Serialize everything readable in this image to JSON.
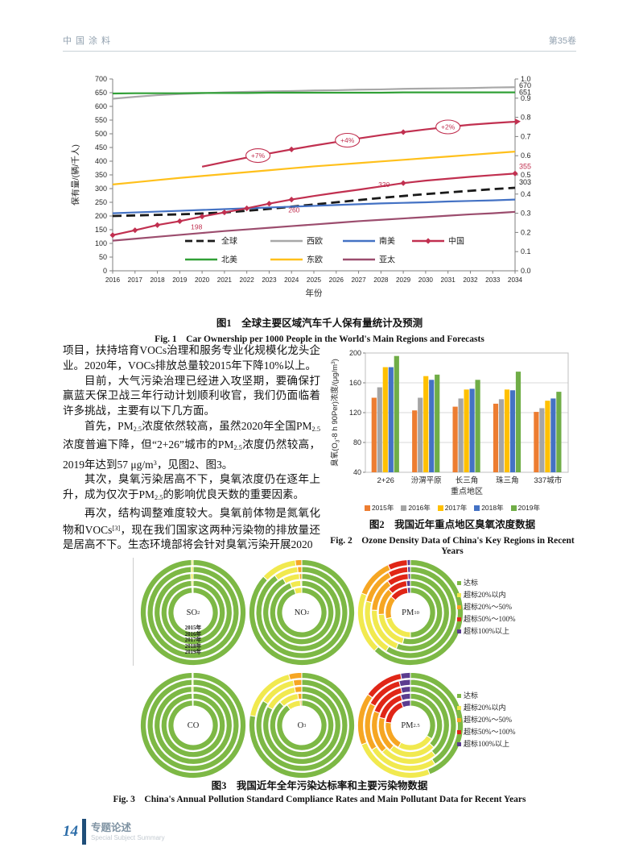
{
  "header": {
    "journal": "中国涂料",
    "volume": "第35卷"
  },
  "figure1": {
    "caption_cn": "图1　全球主要区域汽车千人保有量统计及预测",
    "caption_en": "Fig. 1　Car Ownership per 1000 People in the World's Main Regions and Forecasts"
  },
  "body_text": {
    "paragraphs": [
      "项目，扶持培育VOCs治理和服务专业化规模化龙头企业。2020年，VOCs排放总量较2015年下降10%以上。",
      "目前，大气污染治理已经进入攻坚期，要确保打赢蓝天保卫战三年行动计划顺利收官，我们仍面临着许多挑战，主要有以下几方面。",
      "首先，PM<sub>2.5</sub>浓度依然较高，虽然2020年全国PM<sub>2.5</sub>浓度普遍下降，但“2+26”城市的PM<sub>2.5</sub>浓度仍然较高，2019年达到57 μg/m<sup>3</sup>，见图2、图3。",
      "其次，臭氧污染居高不下，臭氧浓度仍在逐年上升，成为仅次于PM<sub>2.5</sub>的影响优良天数的重要因素。",
      "再次，结构调整难度较大。臭氧前体物是氮氧化物和VOCs<sup>[3]</sup>，现在我们国家这两种污染物的排放量还是居高不下。生态环境部将会针对臭氧污染开展2020"
    ]
  },
  "figure2": {
    "caption_cn": "图2　我国近年重点地区臭氧浓度数据",
    "caption_en": "Fig. 2　Ozone Density Data of China's Key Regions in Recent Years"
  },
  "figure3": {
    "caption_cn": "图3　我国近年全年污染达标率和主要污染物数据",
    "caption_en": "Fig. 3　China's Annual Pollution Standard Compliance Rates and Main Pollutant Data for Recent Years"
  },
  "footer": {
    "page_number": "14",
    "section_cn": "专题论述",
    "section_en": "Special Subject Summary"
  },
  "chart_data": [
    {
      "id": "fig1",
      "type": "line",
      "x": [
        2016,
        2017,
        2018,
        2019,
        2020,
        2021,
        2022,
        2023,
        2024,
        2025,
        2026,
        2027,
        2028,
        2029,
        2030,
        2031,
        2032,
        2033,
        2034
      ],
      "xlabel": "年份",
      "ylabel_left": "保有量/(辆/千人)",
      "ylim_left": [
        0,
        700
      ],
      "ytick_step_left": 50,
      "ylim_right": [
        0.0,
        1.0
      ],
      "ytick_step_right": 0.1,
      "series": [
        {
          "name": "全球",
          "key": "global",
          "color": "#1a1a1a",
          "style": "dashed",
          "values": [
            200,
            202,
            204,
            206,
            209,
            213,
            219,
            226,
            234,
            242,
            250,
            258,
            266,
            273,
            280,
            286,
            292,
            298,
            303
          ],
          "end_label": "303",
          "end_label_color": "#1a1a1a",
          "end_label_dy": -4
        },
        {
          "name": "西欧",
          "key": "west-europe",
          "color": "#a8a8a8",
          "values": [
            628,
            635,
            641,
            645,
            648,
            651,
            653,
            655,
            656,
            658,
            659,
            661,
            662,
            664,
            665,
            666,
            667,
            669,
            670
          ],
          "end_label": "670",
          "end_label_color": "#262626",
          "end_label_dy": 1
        },
        {
          "name": "南美",
          "key": "south-america",
          "color": "#4472c4",
          "values": [
            210,
            213,
            216,
            219,
            222,
            225,
            228,
            231,
            234,
            237,
            240,
            243,
            246,
            248,
            250,
            253,
            255,
            257,
            260
          ]
        },
        {
          "name": "中国",
          "key": "china",
          "color": "#c13050",
          "marker": "diamond",
          "marker_years": [
            2016,
            2017,
            2018,
            2019,
            2020,
            2021,
            2022,
            2023,
            2024,
            2029,
            2034
          ],
          "values": [
            130,
            148,
            167,
            181,
            198,
            213,
            228,
            245,
            260,
            273,
            285,
            296,
            308,
            320,
            329,
            336,
            343,
            349,
            355
          ],
          "end_label": "355",
          "end_label_color": "#c13050",
          "end_label_dy": -6,
          "point_labels": [
            {
              "x": 2020,
              "text": "198",
              "dx": -14,
              "dy": 16
            },
            {
              "x": 2024,
              "text": "260",
              "dx": -4,
              "dy": 16
            },
            {
              "x": 2029,
              "text": "320",
              "dx": -31,
              "dy": 5
            }
          ]
        },
        {
          "name": "北美",
          "key": "north-america",
          "color": "#31a037",
          "values": [
            647,
            648,
            648,
            648,
            649,
            649,
            649,
            650,
            650,
            650,
            650,
            650,
            650,
            651,
            651,
            651,
            651,
            651,
            651
          ],
          "end_label": "651",
          "end_label_color": "#262626",
          "end_label_dy": 3
        },
        {
          "name": "东欧",
          "key": "east-europe",
          "color": "#ffc01b",
          "values": [
            315,
            323,
            331,
            339,
            346,
            353,
            360,
            367,
            374,
            381,
            387,
            393,
            399,
            405,
            411,
            417,
            423,
            429,
            435
          ]
        },
        {
          "name": "亚太",
          "key": "asia-pacific",
          "color": "#9c4d6e",
          "values": [
            110,
            117,
            124,
            131,
            138,
            145,
            151,
            157,
            163,
            169,
            175,
            181,
            186,
            191,
            196,
            201,
            206,
            210,
            215
          ]
        },
        {
          "name": "中国增速",
          "key": "china-growth",
          "color": "#c13050",
          "marker": "diamond",
          "marker_years": [
            2024,
            2029
          ],
          "x_start": 2020,
          "arrow_end": true,
          "values_partial": [
            380,
            397,
            413,
            428,
            443,
            457,
            470,
            483,
            495,
            506,
            516,
            525,
            533,
            539,
            544
          ],
          "bubbles": [
            {
              "x": 2022.5,
              "text": "+7%"
            },
            {
              "x": 2026.5,
              "text": "+4%"
            },
            {
              "x": 2031,
              "text": "+2%"
            }
          ]
        }
      ],
      "legend_rows": [
        [
          "全球",
          "西欧",
          "南美",
          "中国"
        ],
        [
          "北美",
          "东欧",
          "亚太"
        ]
      ]
    },
    {
      "id": "fig2",
      "type": "bar",
      "categories": [
        "2+26",
        "汾渭平原",
        "长三角",
        "珠三角",
        "337城市"
      ],
      "xlabel": "重点地区",
      "ylabel_parts": [
        {
          "t": "臭氧(O"
        },
        {
          "t": "3",
          "shift": "sub"
        },
        {
          "t": "-8 h 90Per)浓度/(μg/m"
        },
        {
          "t": "3",
          "shift": "sup"
        },
        {
          "t": ")"
        }
      ],
      "ylim": [
        40,
        200
      ],
      "yticks": [
        40,
        80,
        120,
        160,
        200
      ],
      "series": [
        {
          "name": "2015年",
          "color": "#ed7d31",
          "values": [
            140,
            123,
            128,
            132,
            121
          ]
        },
        {
          "name": "2016年",
          "color": "#a5a5a5",
          "values": [
            154,
            140,
            139,
            138,
            126
          ]
        },
        {
          "name": "2017年",
          "color": "#ffc000",
          "values": [
            181,
            169,
            151,
            151,
            136
          ]
        },
        {
          "name": "2018年",
          "color": "#4472c4",
          "values": [
            181,
            164,
            152,
            150,
            139
          ]
        },
        {
          "name": "2019年",
          "color": "#70ad47",
          "values": [
            196,
            171,
            164,
            175,
            148
          ]
        }
      ]
    },
    {
      "id": "fig3",
      "type": "donut-rings",
      "years": [
        "2015年",
        "2016年",
        "2017年",
        "2018年",
        "2019年"
      ],
      "categories": [
        {
          "label": "达标",
          "color": "#7db845"
        },
        {
          "label": "超标20%以内",
          "color": "#f1e94f"
        },
        {
          "label": "超标20%～50%",
          "color": "#f6a623"
        },
        {
          "label": "超标50%～100%",
          "color": "#e02617"
        },
        {
          "label": "超标100%以上",
          "color": "#5b3c8f"
        }
      ],
      "pollutants": [
        {
          "key": "so2",
          "label_rich": "SO<sub>2</sub>",
          "show_year_labels": true,
          "rings": [
            [
              0.993,
              0.007,
              0,
              0,
              0
            ],
            [
              0.992,
              0.008,
              0,
              0,
              0
            ],
            [
              0.99,
              0.01,
              0,
              0,
              0
            ],
            [
              0.993,
              0.007,
              0,
              0,
              0
            ],
            [
              0.995,
              0.005,
              0,
              0,
              0
            ]
          ]
        },
        {
          "key": "no2",
          "label_rich": "NO<sub>2</sub>",
          "rings": [
            [
              0.95,
              0.05,
              0,
              0,
              0
            ],
            [
              0.94,
              0.055,
              0.005,
              0,
              0
            ],
            [
              0.92,
              0.07,
              0.01,
              0,
              0
            ],
            [
              0.9,
              0.085,
              0.015,
              0,
              0
            ],
            [
              0.87,
              0.11,
              0.02,
              0,
              0
            ]
          ]
        },
        {
          "key": "pm10",
          "label_rich": "PM<sub>10</sub>",
          "rings": [
            [
              0.5,
              0.21,
              0.15,
              0.12,
              0.02
            ],
            [
              0.54,
              0.2,
              0.14,
              0.1,
              0.02
            ],
            [
              0.56,
              0.2,
              0.14,
              0.09,
              0.01
            ],
            [
              0.59,
              0.2,
              0.13,
              0.07,
              0.01
            ],
            [
              0.62,
              0.19,
              0.12,
              0.06,
              0.01
            ]
          ]
        },
        {
          "key": "co",
          "label_rich": "CO",
          "rings": [
            [
              0.996,
              0.004,
              0,
              0,
              0
            ],
            [
              0.995,
              0.005,
              0,
              0,
              0
            ],
            [
              0.994,
              0.006,
              0,
              0,
              0
            ],
            [
              0.996,
              0.004,
              0,
              0,
              0
            ],
            [
              0.997,
              0.003,
              0,
              0,
              0
            ]
          ]
        },
        {
          "key": "o3",
          "label_rich": "O<sub>3</sub>",
          "rings": [
            [
              0.9,
              0.09,
              0.01,
              0,
              0
            ],
            [
              0.88,
              0.1,
              0.02,
              0,
              0
            ],
            [
              0.83,
              0.14,
              0.03,
              0,
              0
            ],
            [
              0.84,
              0.13,
              0.03,
              0,
              0
            ],
            [
              0.78,
              0.18,
              0.04,
              0,
              0
            ]
          ]
        },
        {
          "key": "pm25",
          "label_rich": "PM<sub>2.5</sub>",
          "rings": [
            [
              0.34,
              0.24,
              0.19,
              0.17,
              0.06
            ],
            [
              0.37,
              0.24,
              0.18,
              0.16,
              0.05
            ],
            [
              0.39,
              0.24,
              0.18,
              0.15,
              0.04
            ],
            [
              0.41,
              0.25,
              0.17,
              0.13,
              0.04
            ],
            [
              0.44,
              0.25,
              0.16,
              0.12,
              0.03
            ]
          ]
        }
      ],
      "rows": [
        [
          "so2",
          "no2",
          "pm10"
        ],
        [
          "co",
          "o3",
          "pm25"
        ]
      ]
    }
  ]
}
